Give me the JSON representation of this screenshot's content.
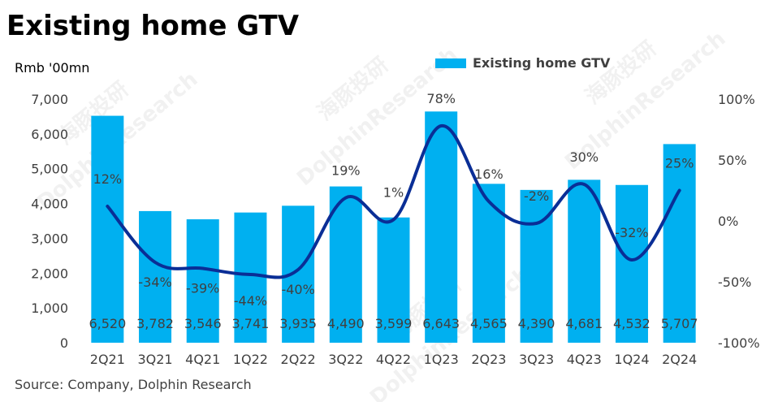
{
  "title": "Existing home GTV",
  "unit_label": "Rmb '00mn",
  "source": "Source: Company, Dolphin Research",
  "colors": {
    "bar": "#00B0F0",
    "line": "#0A2E96",
    "axis_text": "#404040"
  },
  "chart_data": {
    "type": "bar",
    "categories": [
      "2Q21",
      "3Q21",
      "4Q21",
      "1Q22",
      "2Q22",
      "3Q22",
      "4Q22",
      "1Q23",
      "2Q23",
      "3Q23",
      "4Q23",
      "1Q24",
      "2Q24"
    ],
    "series": [
      {
        "name": "Existing home GTV",
        "type": "bar",
        "axis": "left",
        "values": [
          6520,
          3782,
          3546,
          3741,
          3935,
          4490,
          3599,
          6643,
          4565,
          4390,
          4681,
          4532,
          5707
        ],
        "labels": [
          "6,520",
          "3,782",
          "3,546",
          "3,741",
          "3,935",
          "4,490",
          "3,599",
          "6,643",
          "4,565",
          "4,390",
          "4,681",
          "4,532",
          "5,707"
        ]
      },
      {
        "type": "line",
        "axis": "right",
        "values": [
          12,
          -34,
          -39,
          -44,
          -40,
          19,
          1,
          78,
          16,
          -2,
          30,
          -32,
          25
        ],
        "labels": [
          "12%",
          "-34%",
          "-39%",
          "-44%",
          "-40%",
          "19%",
          "1%",
          "78%",
          "16%",
          "-2%",
          "30%",
          "-32%",
          "25%"
        ]
      }
    ],
    "ylim_left": [
      0,
      7000
    ],
    "ylim_right": [
      -100,
      100
    ],
    "yticks_left": [
      "0",
      "1,000",
      "2,000",
      "3,000",
      "4,000",
      "5,000",
      "6,000",
      "7,000"
    ],
    "yticks_right": [
      "-100%",
      "-50%",
      "0%",
      "50%",
      "100%"
    ],
    "legend_position": "top-right",
    "grid": false
  },
  "watermarks": [
    "海豚投研",
    "DolphinResearch"
  ]
}
